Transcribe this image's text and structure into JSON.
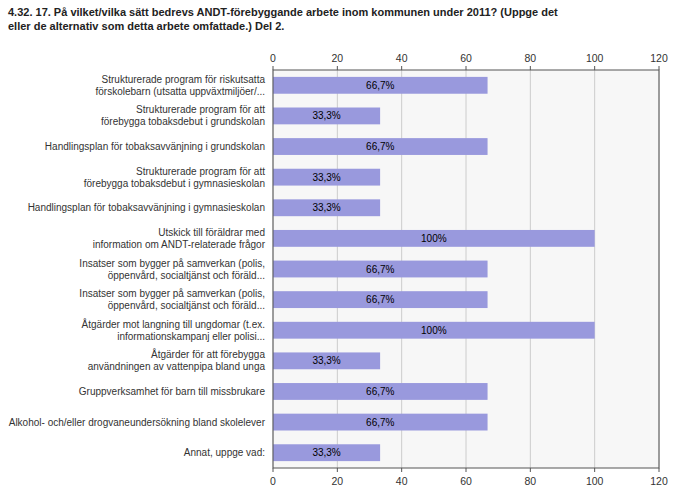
{
  "chart_data": {
    "type": "bar",
    "orientation": "horizontal",
    "title": "4.32. 17. På vilket/vilka sätt bedrevs ANDT-förebyggande arbete inom kommunen under 2011? (Uppge det\neller de alternativ som detta arbete omfattade.) Del 2.",
    "categories": [
      "Strukturerade program för riskutsatta\nförskolebarn (utsatta uppväxtmiljöer/...",
      "Strukturerade program för att\nförebygga tobaksdebut i grundskolan",
      "Handlingsplan för tobaksavvänjning i grundskolan",
      "Strukturerade program för att\nförebygga tobaksdebut i gymnasieskolan",
      "Handlingsplan för tobaksavvänjning i gymnasieskolan",
      "Utskick till föräldrar med\ninformation om ANDT-relaterade frågor",
      "Insatser som bygger på samverkan (polis,\nöppenvård, socialtjänst och föräld...",
      "Insatser som bygger på samverkan (polis,\nöppenvård, socialtjänst och föräld...",
      "Åtgärder mot langning till ungdomar (t.ex.\ninformationskampanj eller polisi...",
      "Åtgärder för att förebygga\nanvändningen av vattenpipa bland unga",
      "Gruppverksamhet för barn till missbrukare",
      "Alkohol- och/eller drogvaneundersökning bland skolelever",
      "Annat, uppge vad:"
    ],
    "values": [
      66.7,
      33.3,
      66.7,
      33.3,
      33.3,
      100.0,
      66.7,
      66.7,
      100.0,
      33.3,
      66.7,
      66.7,
      33.3
    ],
    "value_labels": [
      "66,7%",
      "33,3%",
      "66,7%",
      "33,3%",
      "33,3%",
      "100%",
      "66,7%",
      "66,7%",
      "100%",
      "33,3%",
      "66,7%",
      "66,7%",
      "33,3%"
    ],
    "data_labels": true,
    "color": "#9999dd",
    "xlim": [
      0,
      120
    ],
    "xticks": [
      0,
      20,
      40,
      60,
      80,
      100,
      120
    ],
    "grid": true
  }
}
